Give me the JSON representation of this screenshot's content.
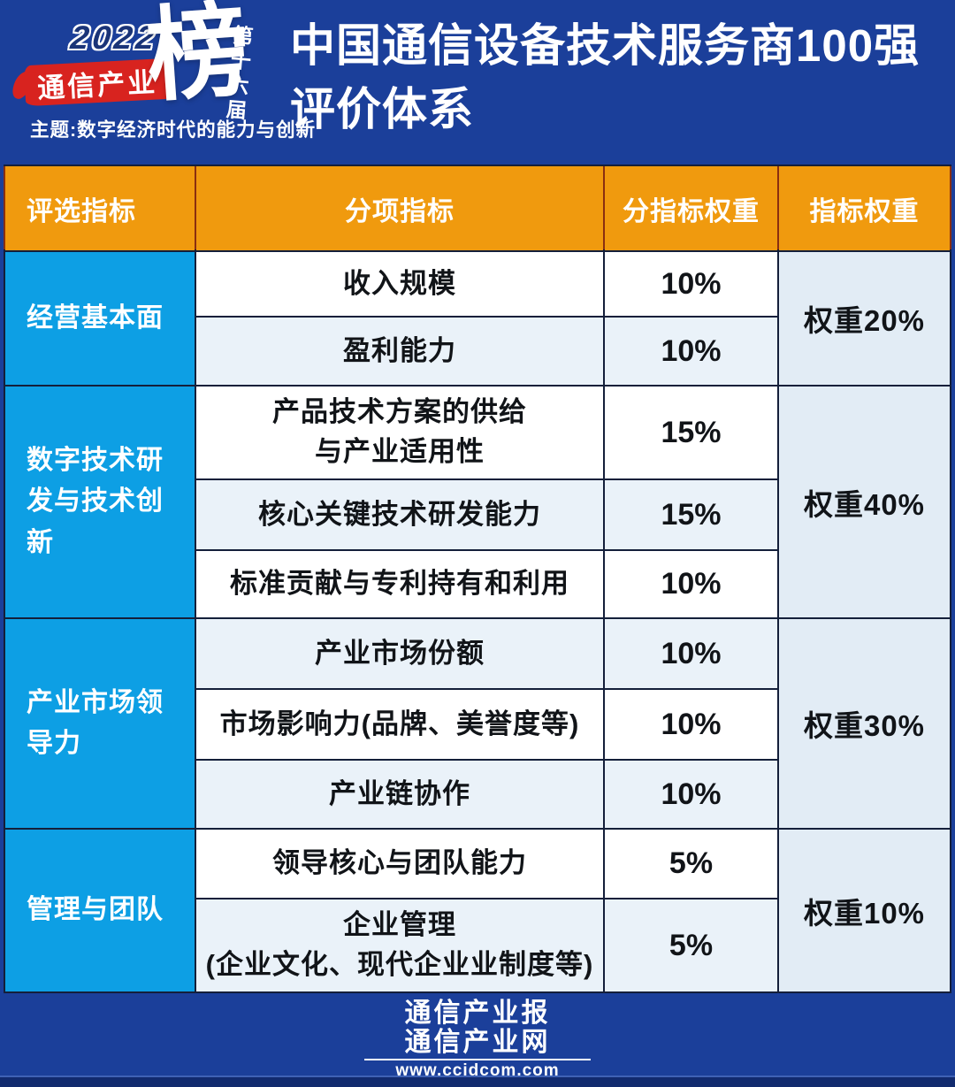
{
  "colors": {
    "banner_bg": "#1b3f9a",
    "header_bg": "#f09a0e",
    "category_bg": "#0d9fe4",
    "row_alt_bg": "#eaf2f9",
    "weight_bg": "#e2ecf5",
    "brush_red": "#d8231f",
    "border_dark": "#141f3a",
    "border_header": "#8a2f10"
  },
  "banner": {
    "logo": {
      "year": "2022",
      "brand": "通信产业",
      "bang": "榜",
      "edition": "第十六届",
      "theme": "主题:数字经济时代的能力与创新"
    },
    "title": "中国通信设备技术服务商100强\n评价体系"
  },
  "table": {
    "headers": [
      "评选指标",
      "分项指标",
      "分指标权重",
      "指标权重"
    ],
    "groups": [
      {
        "category": "经营基本面",
        "weight": "权重20%",
        "rows": [
          {
            "label": "收入规模",
            "value": "10%"
          },
          {
            "label": "盈利能力",
            "value": "10%"
          }
        ]
      },
      {
        "category": "数字技术研发与技术创新",
        "weight": "权重40%",
        "rows": [
          {
            "label": "产品技术方案的供给\n与产业适用性",
            "value": "15%"
          },
          {
            "label": "核心关键技术研发能力",
            "value": "15%"
          },
          {
            "label": "标准贡献与专利持有和利用",
            "value": "10%"
          }
        ]
      },
      {
        "category": "产业市场领导力",
        "weight": "权重30%",
        "rows": [
          {
            "label": "产业市场份额",
            "value": "10%"
          },
          {
            "label": "市场影响力(品牌、美誉度等)",
            "value": "10%"
          },
          {
            "label": "产业链协作",
            "value": "10%"
          }
        ]
      },
      {
        "category": "管理与团队",
        "weight": "权重10%",
        "rows": [
          {
            "label": "领导核心与团队能力",
            "value": "5%"
          },
          {
            "label": "企业管理\n(企业文化、现代企业业制度等)",
            "value": "5%"
          }
        ]
      }
    ]
  },
  "footer": {
    "line1": "通信产业报",
    "line2": "通信产业网",
    "url": "www.ccidcom.com"
  }
}
